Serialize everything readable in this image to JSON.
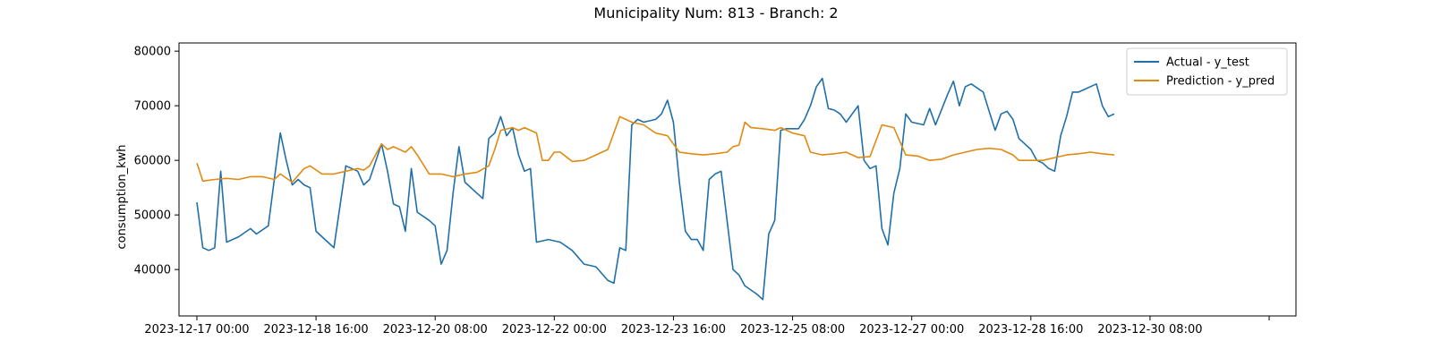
{
  "chart_data": {
    "type": "line",
    "title": "Municipality Num: 813 - Branch: 2",
    "xlabel": "",
    "ylabel": "consumption_kwh",
    "ylim": [
      31500,
      81500
    ],
    "yticks": [
      40000,
      50000,
      60000,
      70000,
      80000
    ],
    "xlim": [
      "2023-12-16 18:00",
      "2024-01-01 09:00"
    ],
    "xticks": [
      "2023-12-17 00:00",
      "2023-12-18 16:00",
      "2023-12-20 08:00",
      "2023-12-22 00:00",
      "2023-12-23 16:00",
      "2023-12-25 08:00",
      "2023-12-27 00:00",
      "2023-12-28 16:00",
      "2023-12-30 08:00",
      "2024-01-01 00:00"
    ],
    "xtick_labels": [
      "2023-12-17 00:00",
      "2023-12-18 16:00",
      "2023-12-20 08:00",
      "2023-12-22 00:00",
      "2023-12-23 16:00",
      "2023-12-25 08:00",
      "2023-12-27 00:00",
      "2023-12-28 16:00",
      "2023-12-30 08:00",
      ""
    ],
    "grid": false,
    "legend_position": "top-right",
    "series": [
      {
        "name": "Actual - y_test",
        "color": "#1f6fa8",
        "points": [
          [
            "2023-12-17 00:00",
            52300
          ],
          [
            "2023-12-17 02:00",
            44000
          ],
          [
            "2023-12-17 04:00",
            43500
          ],
          [
            "2023-12-17 06:00",
            44000
          ],
          [
            "2023-12-17 08:00",
            58000
          ],
          [
            "2023-12-17 10:00",
            45000
          ],
          [
            "2023-12-17 14:00",
            46000
          ],
          [
            "2023-12-17 18:00",
            47500
          ],
          [
            "2023-12-17 20:00",
            46500
          ],
          [
            "2023-12-18 00:00",
            48000
          ],
          [
            "2023-12-18 04:00",
            65000
          ],
          [
            "2023-12-18 06:00",
            60000
          ],
          [
            "2023-12-18 08:00",
            55500
          ],
          [
            "2023-12-18 10:00",
            56500
          ],
          [
            "2023-12-18 12:00",
            55500
          ],
          [
            "2023-12-18 14:00",
            55000
          ],
          [
            "2023-12-18 16:00",
            47000
          ],
          [
            "2023-12-18 20:00",
            45000
          ],
          [
            "2023-12-18 22:00",
            44000
          ],
          [
            "2023-12-19 02:00",
            59000
          ],
          [
            "2023-12-19 06:00",
            58000
          ],
          [
            "2023-12-19 08:00",
            55500
          ],
          [
            "2023-12-19 10:00",
            56500
          ],
          [
            "2023-12-19 14:00",
            63000
          ],
          [
            "2023-12-19 16:00",
            58000
          ],
          [
            "2023-12-19 18:00",
            52000
          ],
          [
            "2023-12-19 20:00",
            51500
          ],
          [
            "2023-12-19 22:00",
            47000
          ],
          [
            "2023-12-20 00:00",
            58500
          ],
          [
            "2023-12-20 02:00",
            50500
          ],
          [
            "2023-12-20 06:00",
            49000
          ],
          [
            "2023-12-20 08:00",
            48000
          ],
          [
            "2023-12-20 10:00",
            41000
          ],
          [
            "2023-12-20 12:00",
            43500
          ],
          [
            "2023-12-20 14:00",
            54000
          ],
          [
            "2023-12-20 16:00",
            62500
          ],
          [
            "2023-12-20 18:00",
            56000
          ],
          [
            "2023-12-20 22:00",
            54000
          ],
          [
            "2023-12-21 00:00",
            53000
          ],
          [
            "2023-12-21 02:00",
            64000
          ],
          [
            "2023-12-21 04:00",
            65000
          ],
          [
            "2023-12-21 06:00",
            68000
          ],
          [
            "2023-12-21 08:00",
            64500
          ],
          [
            "2023-12-21 10:00",
            66000
          ],
          [
            "2023-12-21 12:00",
            61000
          ],
          [
            "2023-12-21 14:00",
            58000
          ],
          [
            "2023-12-21 16:00",
            58500
          ],
          [
            "2023-12-21 18:00",
            45000
          ],
          [
            "2023-12-21 22:00",
            45500
          ],
          [
            "2023-12-22 02:00",
            45000
          ],
          [
            "2023-12-22 06:00",
            43500
          ],
          [
            "2023-12-22 10:00",
            41000
          ],
          [
            "2023-12-22 14:00",
            40500
          ],
          [
            "2023-12-22 18:00",
            38000
          ],
          [
            "2023-12-22 20:00",
            37500
          ],
          [
            "2023-12-22 22:00",
            44000
          ],
          [
            "2023-12-23 00:00",
            43500
          ],
          [
            "2023-12-23 02:00",
            66500
          ],
          [
            "2023-12-23 04:00",
            67500
          ],
          [
            "2023-12-23 06:00",
            67000
          ],
          [
            "2023-12-23 10:00",
            67500
          ],
          [
            "2023-12-23 12:00",
            68500
          ],
          [
            "2023-12-23 14:00",
            71000
          ],
          [
            "2023-12-23 16:00",
            67000
          ],
          [
            "2023-12-23 18:00",
            56000
          ],
          [
            "2023-12-23 20:00",
            47000
          ],
          [
            "2023-12-23 22:00",
            45500
          ],
          [
            "2023-12-24 00:00",
            45500
          ],
          [
            "2023-12-24 02:00",
            43500
          ],
          [
            "2023-12-24 04:00",
            56500
          ],
          [
            "2023-12-24 06:00",
            57500
          ],
          [
            "2023-12-24 08:00",
            58000
          ],
          [
            "2023-12-24 12:00",
            40000
          ],
          [
            "2023-12-24 14:00",
            39000
          ],
          [
            "2023-12-24 16:00",
            37000
          ],
          [
            "2023-12-24 20:00",
            35500
          ],
          [
            "2023-12-24 22:00",
            34500
          ],
          [
            "2023-12-25 00:00",
            46500
          ],
          [
            "2023-12-25 02:00",
            49000
          ],
          [
            "2023-12-25 04:00",
            65500
          ],
          [
            "2023-12-25 06:00",
            65800
          ],
          [
            "2023-12-25 10:00",
            65800
          ],
          [
            "2023-12-25 12:00",
            67500
          ],
          [
            "2023-12-25 14:00",
            70000
          ],
          [
            "2023-12-25 16:00",
            73500
          ],
          [
            "2023-12-25 18:00",
            75000
          ],
          [
            "2023-12-25 20:00",
            69500
          ],
          [
            "2023-12-25 22:00",
            69200
          ],
          [
            "2023-12-26 00:00",
            68500
          ],
          [
            "2023-12-26 02:00",
            67000
          ],
          [
            "2023-12-26 06:00",
            70000
          ],
          [
            "2023-12-26 08:00",
            60000
          ],
          [
            "2023-12-26 10:00",
            58500
          ],
          [
            "2023-12-26 12:00",
            59000
          ],
          [
            "2023-12-26 14:00",
            47500
          ],
          [
            "2023-12-26 16:00",
            44500
          ],
          [
            "2023-12-26 18:00",
            54000
          ],
          [
            "2023-12-26 20:00",
            58500
          ],
          [
            "2023-12-26 22:00",
            68500
          ],
          [
            "2023-12-27 00:00",
            67000
          ],
          [
            "2023-12-27 04:00",
            66500
          ],
          [
            "2023-12-27 06:00",
            69500
          ],
          [
            "2023-12-27 08:00",
            66500
          ],
          [
            "2023-12-27 12:00",
            72000
          ],
          [
            "2023-12-27 14:00",
            74500
          ],
          [
            "2023-12-27 16:00",
            70000
          ],
          [
            "2023-12-27 18:00",
            73500
          ],
          [
            "2023-12-27 20:00",
            74000
          ],
          [
            "2023-12-28 00:00",
            72500
          ],
          [
            "2023-12-28 02:00",
            69000
          ],
          [
            "2023-12-28 04:00",
            65500
          ],
          [
            "2023-12-28 06:00",
            68500
          ],
          [
            "2023-12-28 08:00",
            69000
          ],
          [
            "2023-12-28 10:00",
            67500
          ],
          [
            "2023-12-28 12:00",
            64000
          ],
          [
            "2023-12-28 16:00",
            62000
          ],
          [
            "2023-12-28 18:00",
            60000
          ],
          [
            "2023-12-28 20:00",
            59500
          ],
          [
            "2023-12-28 22:00",
            58500
          ],
          [
            "2023-12-29 00:00",
            58000
          ],
          [
            "2023-12-29 02:00",
            64500
          ],
          [
            "2023-12-29 04:00",
            68000
          ],
          [
            "2023-12-29 06:00",
            72500
          ],
          [
            "2023-12-29 08:00",
            72500
          ],
          [
            "2023-12-29 10:00",
            73000
          ],
          [
            "2023-12-29 12:00",
            73500
          ],
          [
            "2023-12-29 14:00",
            74000
          ],
          [
            "2023-12-29 16:00",
            70000
          ],
          [
            "2023-12-29 18:00",
            68000
          ],
          [
            "2023-12-29 20:00",
            68500
          ]
        ]
      },
      {
        "name": "Prediction - y_pred",
        "color": "#e08a12",
        "points": [
          [
            "2023-12-17 00:00",
            59500
          ],
          [
            "2023-12-17 02:00",
            56200
          ],
          [
            "2023-12-17 06:00",
            56500
          ],
          [
            "2023-12-17 10:00",
            56700
          ],
          [
            "2023-12-17 14:00",
            56500
          ],
          [
            "2023-12-17 18:00",
            57000
          ],
          [
            "2023-12-17 22:00",
            57000
          ],
          [
            "2023-12-18 02:00",
            56500
          ],
          [
            "2023-12-18 04:00",
            57500
          ],
          [
            "2023-12-18 08:00",
            56000
          ],
          [
            "2023-12-18 12:00",
            58500
          ],
          [
            "2023-12-18 14:00",
            59000
          ],
          [
            "2023-12-18 18:00",
            57500
          ],
          [
            "2023-12-18 22:00",
            57500
          ],
          [
            "2023-12-19 02:00",
            58000
          ],
          [
            "2023-12-19 06:00",
            58500
          ],
          [
            "2023-12-19 08:00",
            58200
          ],
          [
            "2023-12-19 10:00",
            59000
          ],
          [
            "2023-12-19 14:00",
            63000
          ],
          [
            "2023-12-19 16:00",
            62000
          ],
          [
            "2023-12-19 18:00",
            62500
          ],
          [
            "2023-12-19 22:00",
            61500
          ],
          [
            "2023-12-20 00:00",
            62500
          ],
          [
            "2023-12-20 02:00",
            61000
          ],
          [
            "2023-12-20 06:00",
            57500
          ],
          [
            "2023-12-20 10:00",
            57500
          ],
          [
            "2023-12-20 14:00",
            57000
          ],
          [
            "2023-12-20 18:00",
            57500
          ],
          [
            "2023-12-20 22:00",
            57800
          ],
          [
            "2023-12-21 02:00",
            59000
          ],
          [
            "2023-12-21 04:00",
            62000
          ],
          [
            "2023-12-21 06:00",
            65500
          ],
          [
            "2023-12-21 10:00",
            66000
          ],
          [
            "2023-12-21 12:00",
            65500
          ],
          [
            "2023-12-21 14:00",
            66000
          ],
          [
            "2023-12-21 18:00",
            65000
          ],
          [
            "2023-12-21 20:00",
            60000
          ],
          [
            "2023-12-21 22:00",
            60000
          ],
          [
            "2023-12-22 00:00",
            61500
          ],
          [
            "2023-12-22 02:00",
            61500
          ],
          [
            "2023-12-22 06:00",
            59800
          ],
          [
            "2023-12-22 10:00",
            60000
          ],
          [
            "2023-12-22 14:00",
            61000
          ],
          [
            "2023-12-22 18:00",
            62000
          ],
          [
            "2023-12-22 22:00",
            68000
          ],
          [
            "2023-12-23 02:00",
            67000
          ],
          [
            "2023-12-23 06:00",
            66500
          ],
          [
            "2023-12-23 10:00",
            65000
          ],
          [
            "2023-12-23 14:00",
            64500
          ],
          [
            "2023-12-23 18:00",
            61500
          ],
          [
            "2023-12-23 22:00",
            61200
          ],
          [
            "2023-12-24 02:00",
            61000
          ],
          [
            "2023-12-24 06:00",
            61200
          ],
          [
            "2023-12-24 10:00",
            61500
          ],
          [
            "2023-12-24 12:00",
            62500
          ],
          [
            "2023-12-24 14:00",
            62800
          ],
          [
            "2023-12-24 16:00",
            67000
          ],
          [
            "2023-12-24 18:00",
            66000
          ],
          [
            "2023-12-24 22:00",
            65800
          ],
          [
            "2023-12-25 02:00",
            65500
          ],
          [
            "2023-12-25 04:00",
            66000
          ],
          [
            "2023-12-25 08:00",
            65000
          ],
          [
            "2023-12-25 12:00",
            64500
          ],
          [
            "2023-12-25 14:00",
            61500
          ],
          [
            "2023-12-25 18:00",
            61000
          ],
          [
            "2023-12-25 22:00",
            61200
          ],
          [
            "2023-12-26 02:00",
            61500
          ],
          [
            "2023-12-26 06:00",
            60500
          ],
          [
            "2023-12-26 10:00",
            60700
          ],
          [
            "2023-12-26 14:00",
            66500
          ],
          [
            "2023-12-26 18:00",
            66000
          ],
          [
            "2023-12-26 22:00",
            61000
          ],
          [
            "2023-12-27 02:00",
            60800
          ],
          [
            "2023-12-27 06:00",
            60000
          ],
          [
            "2023-12-27 10:00",
            60200
          ],
          [
            "2023-12-27 14:00",
            61000
          ],
          [
            "2023-12-27 18:00",
            61500
          ],
          [
            "2023-12-27 22:00",
            62000
          ],
          [
            "2023-12-28 02:00",
            62200
          ],
          [
            "2023-12-28 06:00",
            62000
          ],
          [
            "2023-12-28 10:00",
            61000
          ],
          [
            "2023-12-28 12:00",
            60000
          ],
          [
            "2023-12-28 16:00",
            60000
          ],
          [
            "2023-12-28 20:00",
            60000
          ],
          [
            "2023-12-29 00:00",
            60500
          ],
          [
            "2023-12-29 04:00",
            61000
          ],
          [
            "2023-12-29 08:00",
            61200
          ],
          [
            "2023-12-29 12:00",
            61500
          ],
          [
            "2023-12-29 16:00",
            61200
          ],
          [
            "2023-12-29 20:00",
            61000
          ]
        ]
      }
    ]
  }
}
